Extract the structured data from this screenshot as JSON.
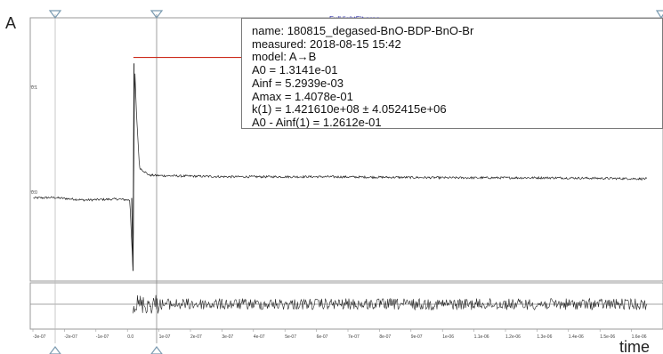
{
  "window": {
    "fit_title": "Full lightFit area",
    "y_axis_label": "A",
    "x_axis_label": "time"
  },
  "info_box": {
    "lines": [
      "name: 180815_degased-BnO-BDP-BnO-Br",
      "measured: 2018-08-15 15:42",
      "model: A→B",
      "A0 = 1.3141e-01",
      "Ainf = 5.2939e-03",
      "Amax = 1.4078e-01",
      "k(1) = 1.421610e+08 ± 4.052415e+06",
      "A0 - Ainf(1) = 1.2612e-01"
    ]
  },
  "colors": {
    "data_trace": "#222222",
    "fit_trace": "#cc2a1a",
    "marker": "#7a9ab0",
    "box_border": "#7a7a7a"
  },
  "chart_data": [
    {
      "type": "line",
      "title": "Full lightFit area",
      "ylabel": "A",
      "xlabel": "time",
      "y_tick_labels": [
        "0.1",
        "0.0"
      ],
      "x_tick_labels": [
        "-3e-07",
        "-2e-07",
        "-1e-07",
        "0.0",
        "1e-07",
        "2e-07",
        "3e-07",
        "4e-07",
        "5e-07",
        "6e-07",
        "7e-07",
        "8e-07",
        "9e-07",
        "1e-06",
        "1.1e-06",
        "1.2e-06",
        "1.3e-06",
        "1.4e-06",
        "1.5e-06",
        "1.6e-06"
      ],
      "xlim": [
        -3.2e-07,
        1.65e-06
      ],
      "ylim": [
        -0.08,
        0.18
      ],
      "series": [
        {
          "role": "data",
          "x": [
            -3.1e-07,
            -2.5e-07,
            -1.5e-07,
            -5e-08,
            -1e-08,
            0,
            5e-09,
            1e-08,
            2e-08,
            5e-08,
            1e-07,
            3e-07,
            6e-07,
            1e-06,
            1.3e-06,
            1.6e-06
          ],
          "y": [
            0.002,
            0.0025,
            0.0,
            0.001,
            0.0,
            -0.07,
            0.135,
            0.09,
            0.032,
            0.0245,
            0.024,
            0.023,
            0.023,
            0.022,
            0.022,
            0.021
          ]
        },
        {
          "role": "fit",
          "x": [
            0,
            5e-09,
            1e-08,
            2e-08,
            5e-08,
            1e-07,
            1.6e-06
          ],
          "y": [
            0.1408,
            0.1075,
            0.0825,
            0.0486,
            0.0253,
            0.0234,
            0.0225
          ]
        }
      ],
      "markers": [
        "start-marker",
        "cursor-marker",
        "end-marker"
      ]
    },
    {
      "type": "line",
      "title": "",
      "series": [
        {
          "role": "residual",
          "x": [
            0,
            1e-07,
            1.6e-06
          ],
          "y": [
            0,
            0,
            0
          ]
        }
      ]
    }
  ]
}
